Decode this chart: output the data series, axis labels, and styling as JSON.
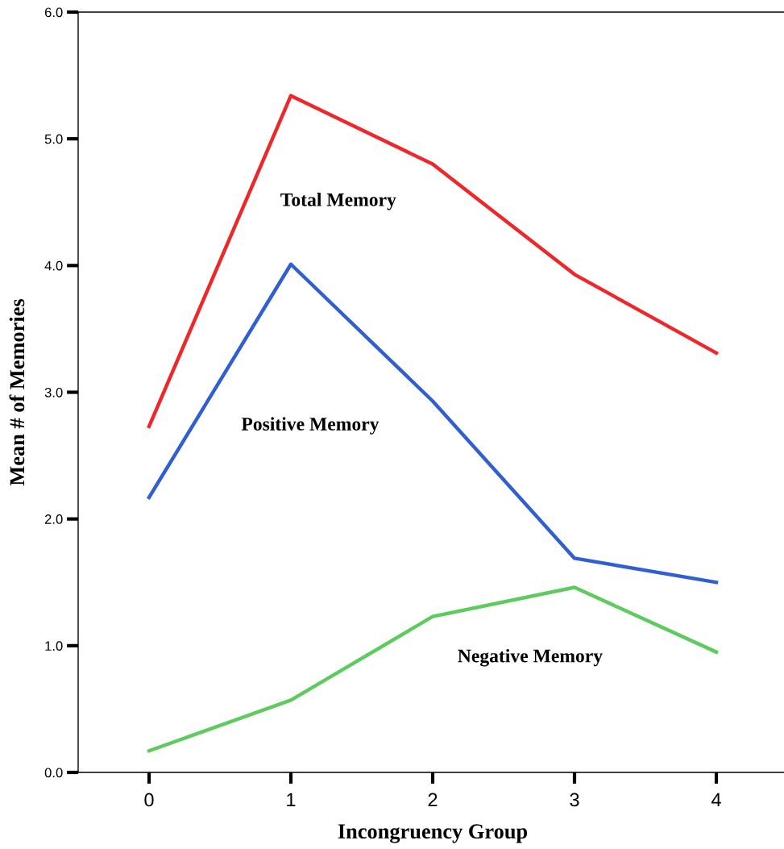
{
  "chart_data": {
    "type": "line",
    "xlabel": "Incongruency Group",
    "ylabel": "Mean # of Memories",
    "x": [
      0,
      1,
      2,
      3,
      4
    ],
    "series": [
      {
        "name": "Total Memory",
        "color": "#f0272a",
        "values": [
          2.73,
          5.34,
          4.8,
          3.93,
          3.31
        ]
      },
      {
        "name": "Positive Memory",
        "color": "#2f5fd0",
        "values": [
          2.17,
          4.01,
          2.93,
          1.69,
          1.5
        ]
      },
      {
        "name": "Negative Memory",
        "color": "#5ecb5e",
        "values": [
          0.17,
          0.57,
          1.23,
          1.46,
          0.95
        ]
      }
    ],
    "xlim": [
      -0.5,
      4.5
    ],
    "ylim": [
      0,
      6
    ],
    "xticks": [
      0,
      1,
      2,
      3,
      4
    ],
    "yticks": [
      {
        "value": 0,
        "label": "0.0"
      },
      {
        "value": 1,
        "label": "1.0"
      },
      {
        "value": 2,
        "label": "2.0"
      },
      {
        "value": 3,
        "label": "3.0"
      },
      {
        "value": 4,
        "label": "4.0"
      },
      {
        "value": 5,
        "label": "5.0"
      },
      {
        "value": 6,
        "label": "6.0"
      }
    ],
    "grid": false,
    "legend": false,
    "marker": "none",
    "line_style": "solid"
  }
}
